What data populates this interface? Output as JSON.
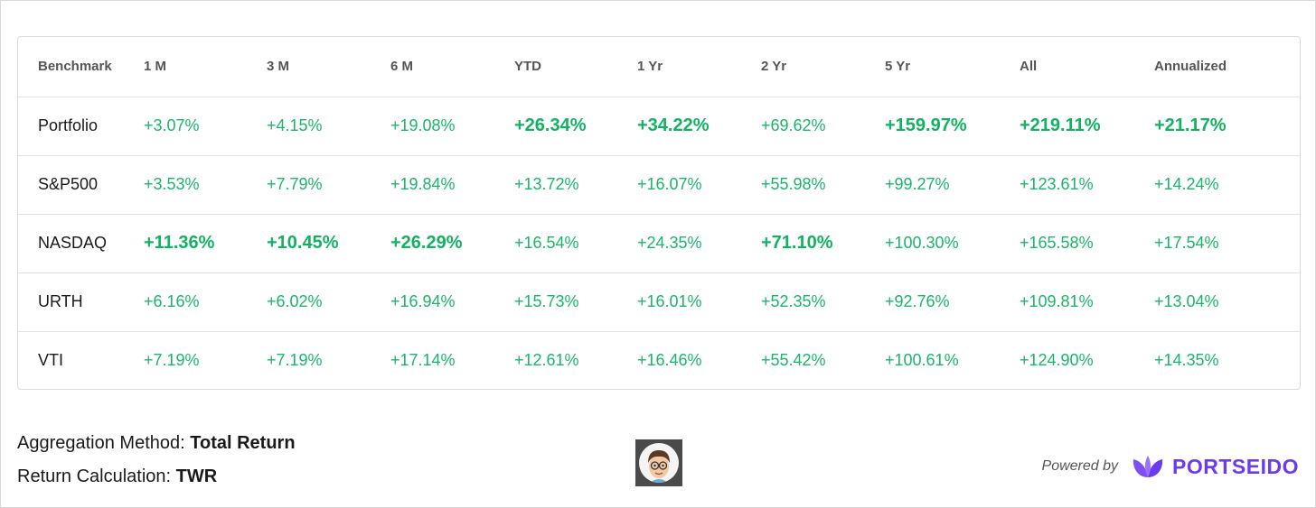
{
  "table": {
    "headers": [
      "Benchmark",
      "1 M",
      "3 M",
      "6 M",
      "YTD",
      "1 Yr",
      "2 Yr",
      "5 Yr",
      "All",
      "Annualized"
    ],
    "rows": [
      {
        "name": "Portfolio",
        "values": [
          "+3.07%",
          "+4.15%",
          "+19.08%",
          "+26.34%",
          "+34.22%",
          "+69.62%",
          "+159.97%",
          "+219.11%",
          "+21.17%"
        ]
      },
      {
        "name": "S&P500",
        "values": [
          "+3.53%",
          "+7.79%",
          "+19.84%",
          "+13.72%",
          "+16.07%",
          "+55.98%",
          "+99.27%",
          "+123.61%",
          "+14.24%"
        ]
      },
      {
        "name": "NASDAQ",
        "values": [
          "+11.36%",
          "+10.45%",
          "+26.29%",
          "+16.54%",
          "+24.35%",
          "+71.10%",
          "+100.30%",
          "+165.58%",
          "+17.54%"
        ]
      },
      {
        "name": "URTH",
        "values": [
          "+6.16%",
          "+6.02%",
          "+16.94%",
          "+15.73%",
          "+16.01%",
          "+52.35%",
          "+92.76%",
          "+109.81%",
          "+13.04%"
        ]
      },
      {
        "name": "VTI",
        "values": [
          "+7.19%",
          "+7.19%",
          "+17.14%",
          "+12.61%",
          "+16.46%",
          "+55.42%",
          "+100.61%",
          "+124.90%",
          "+14.35%"
        ]
      }
    ]
  },
  "footer": {
    "aggregation_label": "Aggregation Method:",
    "aggregation_value": "Total Return",
    "return_calc_label": "Return Calculation:",
    "return_calc_value": "TWR",
    "powered_by": "Powered by",
    "brand": "PORTSEIDO"
  },
  "colors": {
    "positive": "#1bb56a",
    "brand": "#6b3bef"
  },
  "icons": {
    "avatar": "avatar-icon",
    "logo": "leaf-logo-icon"
  }
}
